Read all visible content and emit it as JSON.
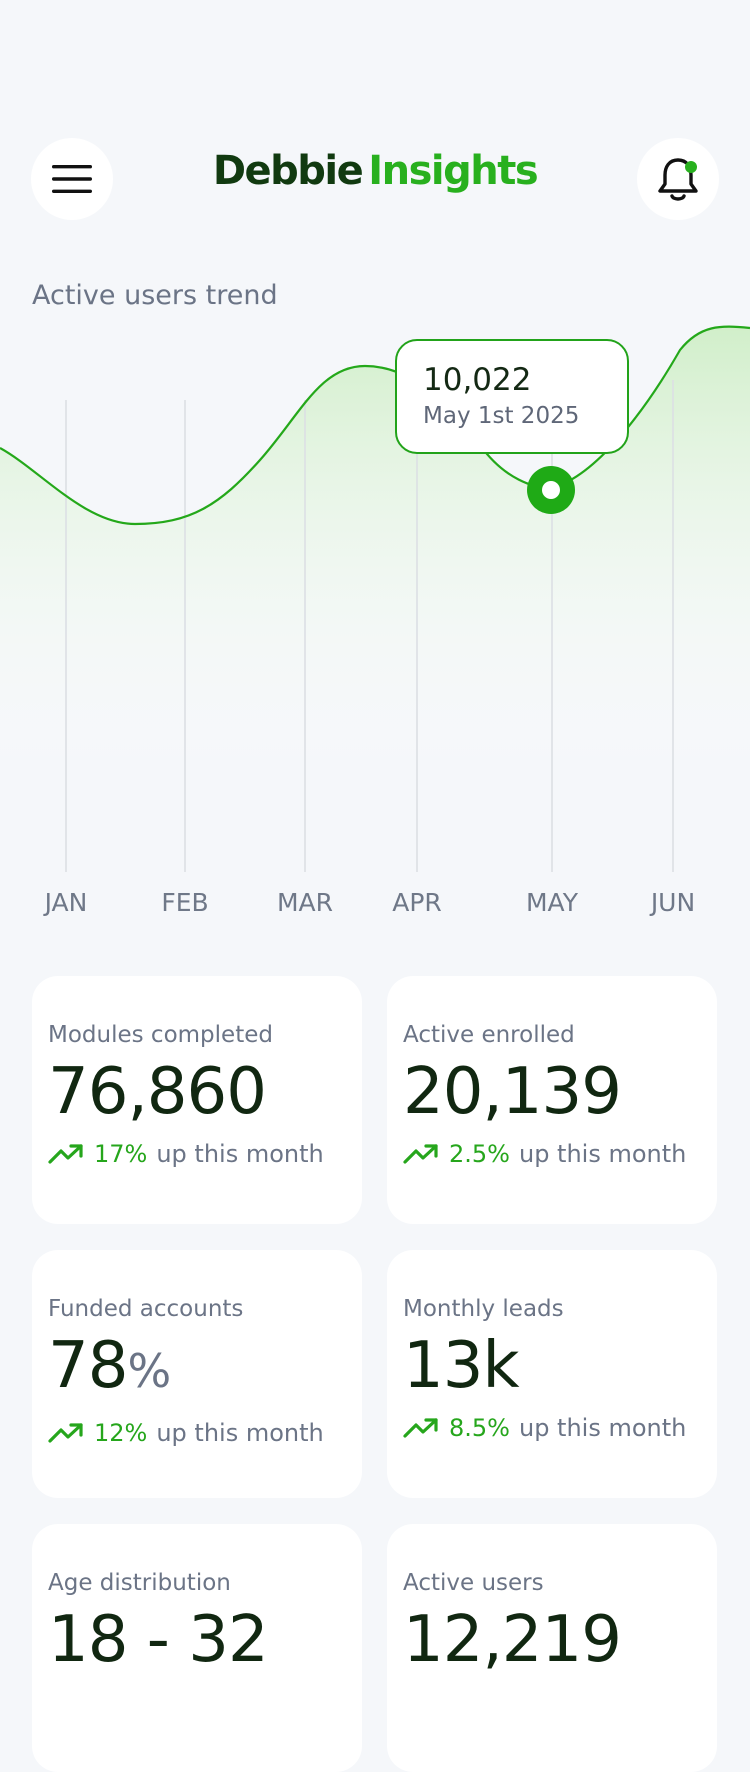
{
  "header": {
    "brand_part1": "Debbie",
    "brand_part2": "Insights",
    "menu_icon": "hamburger-menu-icon",
    "bell_icon": "bell-notification-icon"
  },
  "colors": {
    "accent": "#28b01e",
    "brand_dark": "#113a10",
    "background": "#f5f7fa",
    "line": "#24a81a"
  },
  "chart": {
    "title": "Active users trend",
    "tooltip": {
      "value": "10,022",
      "date": "May 1st 2025"
    }
  },
  "chart_data": {
    "type": "area",
    "title": "Active users trend",
    "categories": [
      "JAN",
      "FEB",
      "MAR",
      "APR",
      "MAY",
      "JUN"
    ],
    "highlight": {
      "category": "MAY",
      "value": 10022,
      "label": "10,022",
      "date": "May 1st 2025"
    },
    "grid": "vertical",
    "legend": "none"
  },
  "cards": [
    {
      "label": "Modules completed",
      "value": "76,860",
      "unit": "",
      "percent": "17%",
      "suffix": "up this month"
    },
    {
      "label": "Active enrolled",
      "value": "20,139",
      "unit": "",
      "percent": "2.5%",
      "suffix": "up this month"
    },
    {
      "label": "Funded accounts",
      "value": "78",
      "unit": "%",
      "percent": "12%",
      "suffix": "up this month"
    },
    {
      "label": "Monthly leads",
      "value": "13k",
      "unit": "",
      "percent": "8.5%",
      "suffix": "up this month"
    },
    {
      "label": "Age distribution",
      "value": "18 - 32",
      "unit": "",
      "percent": "",
      "suffix": ""
    },
    {
      "label": "Active users",
      "value": "12,219",
      "unit": "",
      "percent": "",
      "suffix": ""
    }
  ]
}
